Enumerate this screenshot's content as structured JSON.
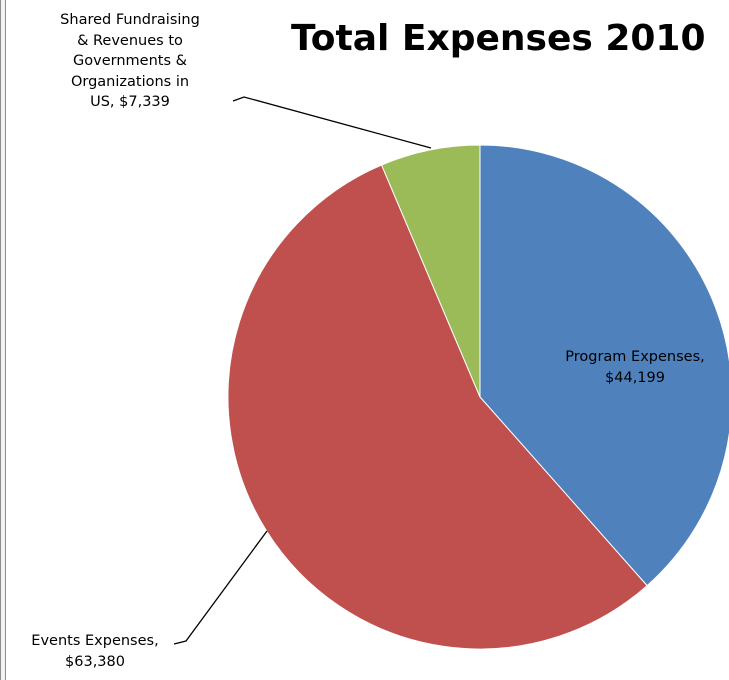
{
  "chart_data": {
    "type": "pie",
    "title": "Total Expenses 2010",
    "slices": [
      {
        "label": "Program Expenses",
        "value": 44199,
        "value_label": "$44,199",
        "color": "#4f81bd"
      },
      {
        "label": "Events Expenses",
        "value": 63380,
        "value_label": "$63,380",
        "color": "#c0504d"
      },
      {
        "label": "Shared Fundraising & Revenues to Governments & Organizations in US",
        "value": 7339,
        "value_label": "$7,339",
        "color": "#9bbb59"
      }
    ],
    "labels": {
      "shared": {
        "lines": [
          "Shared Fundraising",
          "& Revenues to",
          "Governments &",
          "Organizations in",
          "US,  $7,339"
        ]
      },
      "program": {
        "lines": [
          "Program Expenses,",
          "$44,199"
        ]
      },
      "events": {
        "lines": [
          "Events Expenses,",
          "$63,380"
        ]
      }
    },
    "legend": "none",
    "start_angle": "12 o'clock",
    "direction": "clockwise"
  }
}
